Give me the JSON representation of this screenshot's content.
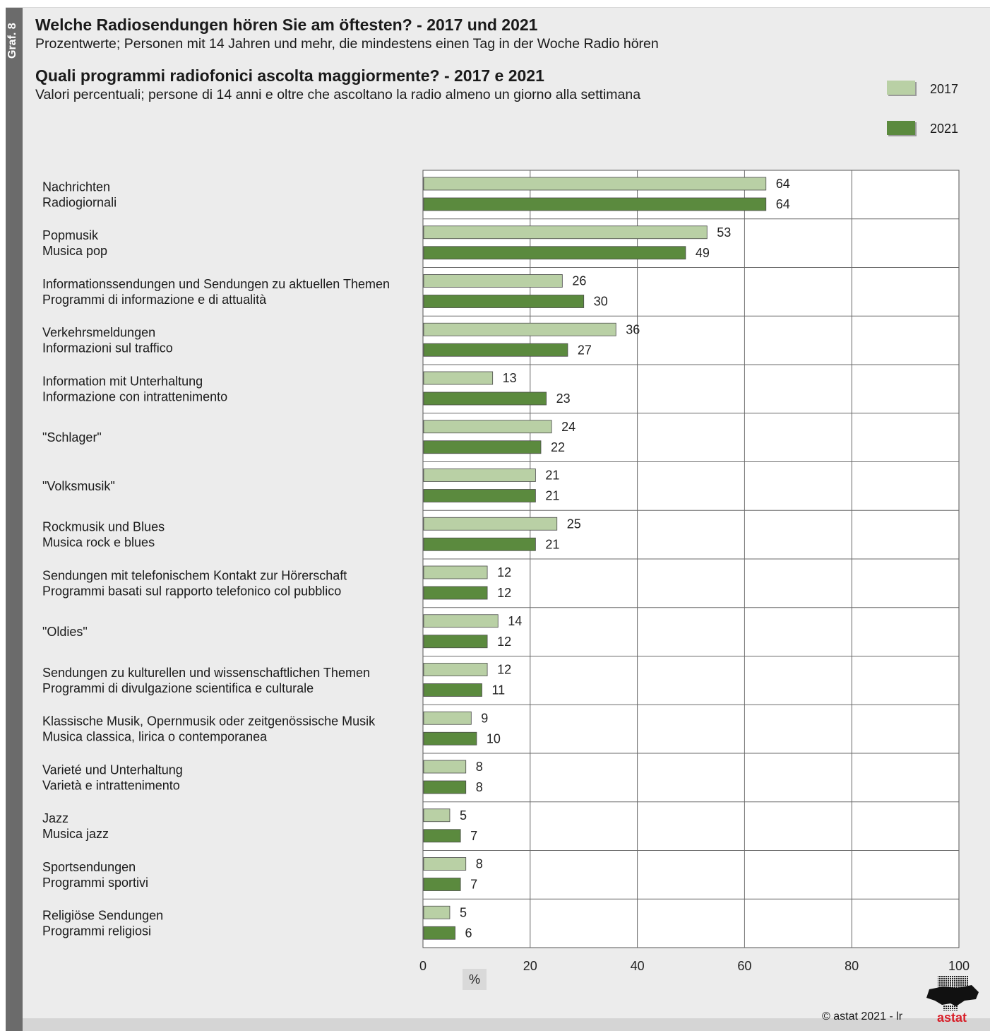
{
  "side_label": "Graf. 8",
  "header": {
    "title_de": "Welche Radiosendungen hören Sie am öftesten? - 2017 und 2021",
    "subtitle_de": "Prozentwerte; Personen mit 14 Jahren und mehr, die mindestens einen Tag in der Woche Radio hören",
    "title_it": "Quali programmi radiofonici ascolta maggiormente? - 2017 e 2021",
    "subtitle_it": "Valori percentuali; persone di 14 anni e oltre che ascoltano la radio almeno un giorno alla settimana"
  },
  "legend": [
    {
      "label": "2017",
      "color": "#b9d0a5"
    },
    {
      "label": "2021",
      "color": "#5b8a3e"
    }
  ],
  "footer": {
    "copyright": "©  astat 2021 - lr",
    "logo_text": "astat"
  },
  "chart_data": {
    "type": "bar",
    "orientation": "horizontal",
    "xlabel": "%",
    "xlim": [
      0,
      100
    ],
    "xticks": [
      0,
      20,
      40,
      60,
      80,
      100
    ],
    "grid": true,
    "legend_position": "top-right",
    "categories": [
      [
        "Nachrichten",
        "Radiogiornali"
      ],
      [
        "Popmusik",
        "Musica pop"
      ],
      [
        "Informationssendungen und Sendungen zu aktuellen Themen",
        "Programmi di informazione e di attualità"
      ],
      [
        "Verkehrsmeldungen",
        "Informazioni sul traffico"
      ],
      [
        "Information mit Unterhaltung",
        "Informazione con intrattenimento"
      ],
      [
        "\"Schlager\""
      ],
      [
        "\"Volksmusik\""
      ],
      [
        "Rockmusik und Blues",
        "Musica rock e blues"
      ],
      [
        "Sendungen mit telefonischem Kontakt zur Hörerschaft",
        "Programmi basati sul rapporto telefonico col pubblico"
      ],
      [
        "\"Oldies\""
      ],
      [
        "Sendungen zu kulturellen und wissenschaftlichen Themen",
        "Programmi di divulgazione scientifica e culturale"
      ],
      [
        "Klassische Musik, Opernmusik oder zeitgenössische Musik",
        "Musica classica, lirica o contemporanea"
      ],
      [
        "Varieté und Unterhaltung",
        "Varietà e intrattenimento"
      ],
      [
        "Jazz",
        "Musica jazz"
      ],
      [
        "Sportsendungen",
        "Programmi sportivi"
      ],
      [
        "Religiöse Sendungen",
        "Programmi religiosi"
      ]
    ],
    "series": [
      {
        "name": "2017",
        "color": "#b9d0a5",
        "values": [
          64,
          53,
          26,
          36,
          13,
          24,
          21,
          25,
          12,
          14,
          12,
          9,
          8,
          5,
          8,
          5
        ]
      },
      {
        "name": "2021",
        "color": "#5b8a3e",
        "values": [
          64,
          49,
          30,
          27,
          23,
          22,
          21,
          21,
          12,
          12,
          11,
          10,
          8,
          7,
          7,
          6
        ]
      }
    ]
  }
}
